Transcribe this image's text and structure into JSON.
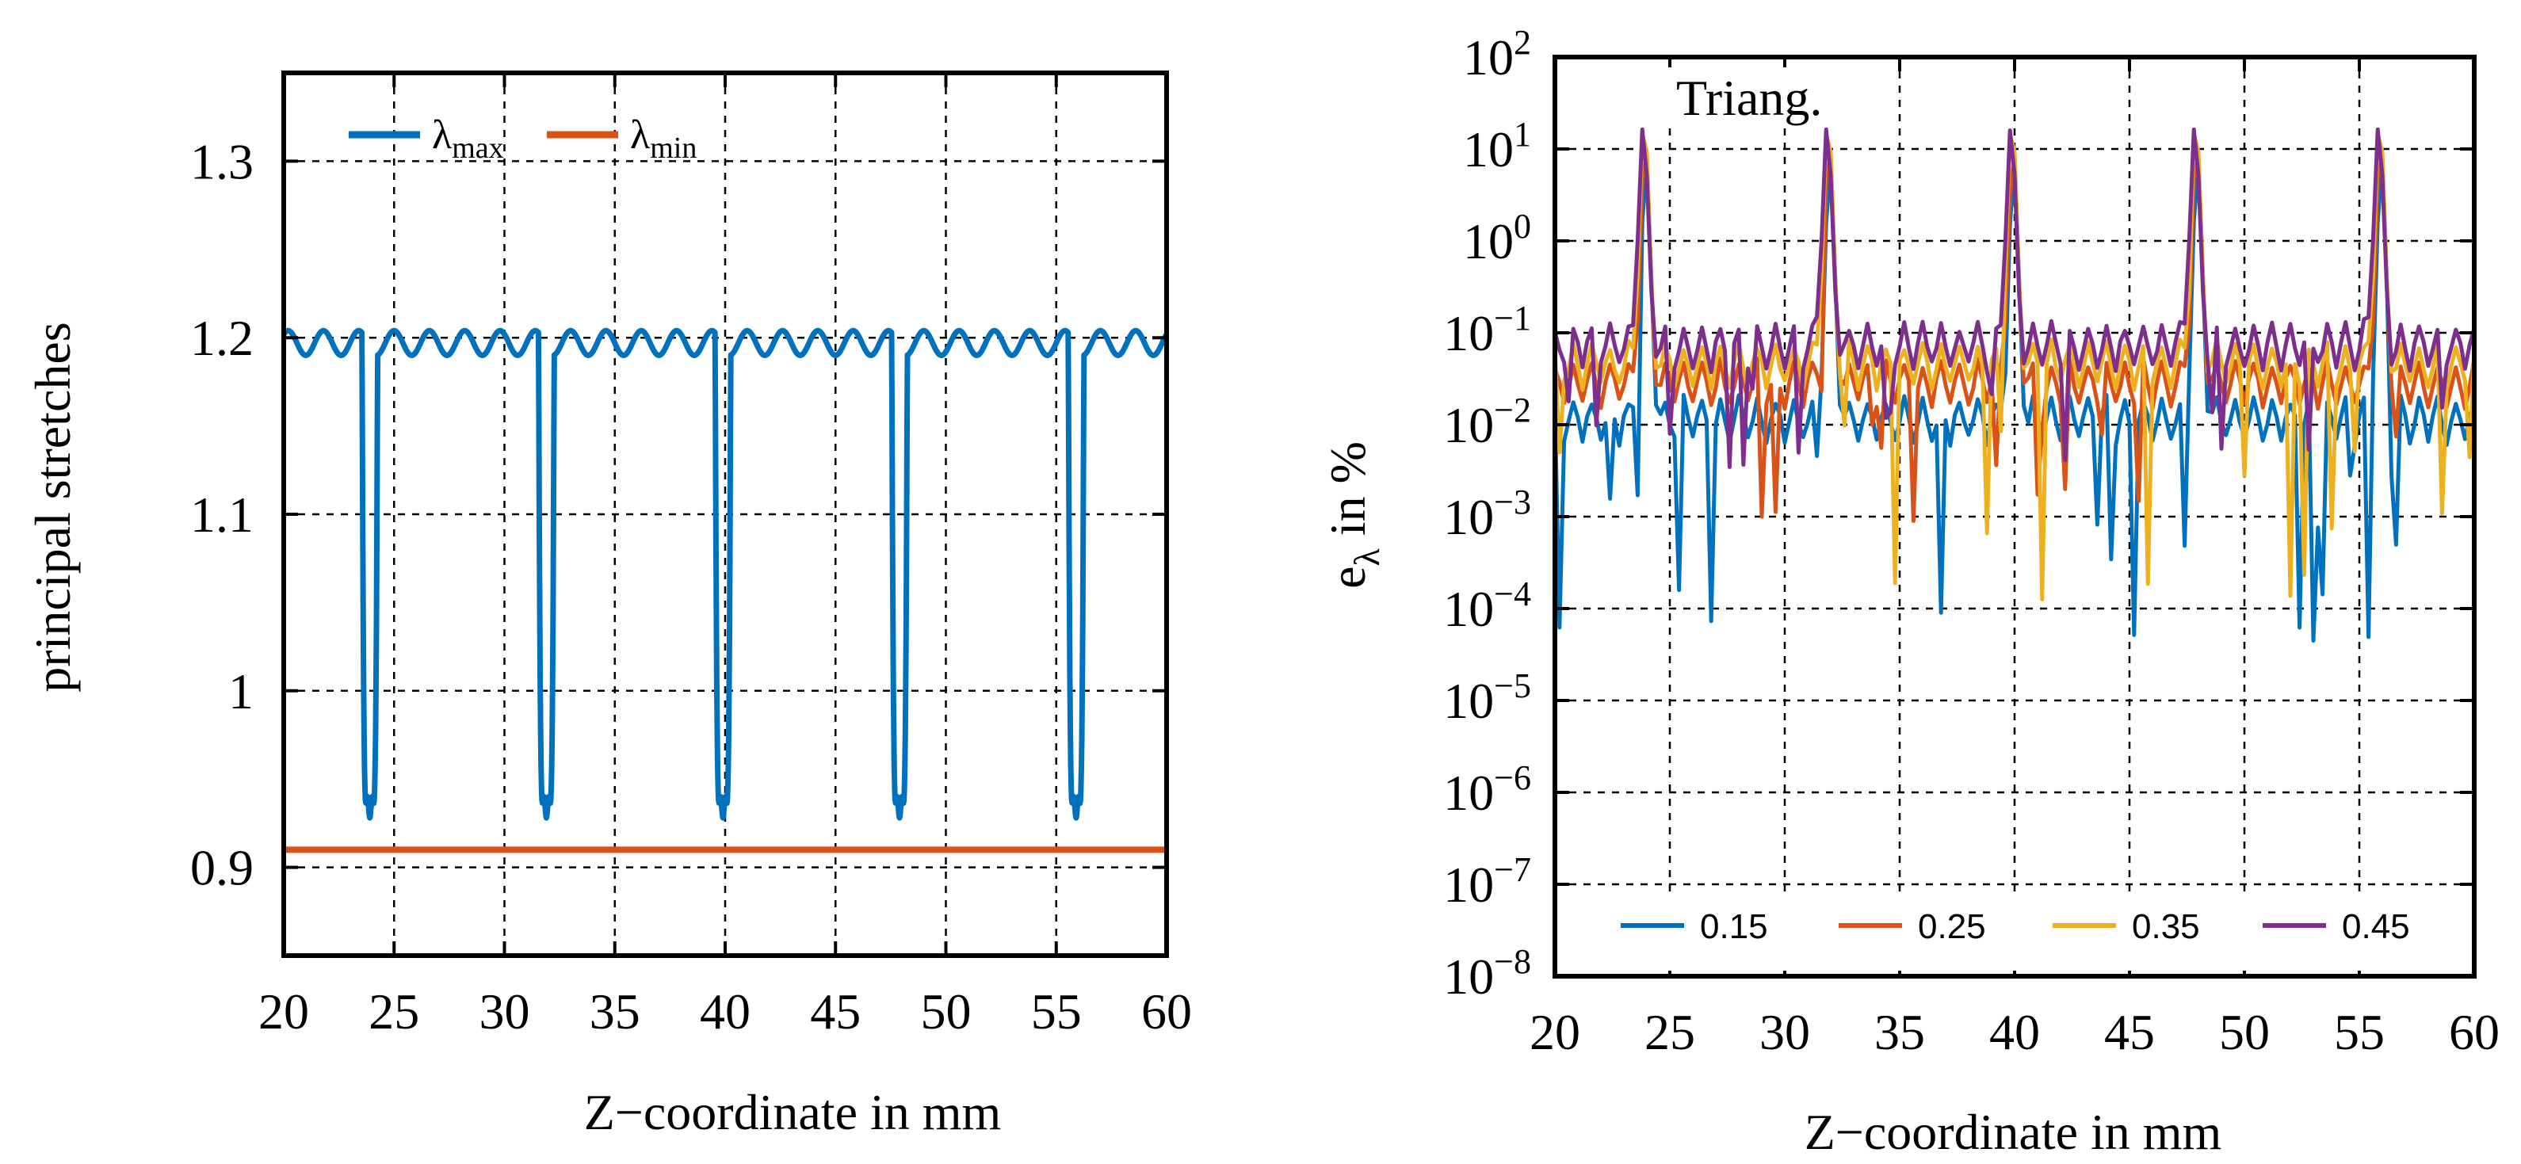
{
  "chart_data": [
    {
      "type": "line",
      "xlabel": "Z−coordinate in mm",
      "ylabel": "principal stretches",
      "xlim": [
        20,
        60
      ],
      "ylim": [
        0.85,
        1.35
      ],
      "yscale": "linear",
      "grid": true,
      "xticks": [
        20,
        25,
        30,
        35,
        40,
        45,
        50,
        55,
        60
      ],
      "xtick_labels": [
        "20",
        "25",
        "30",
        "35",
        "40",
        "45",
        "50",
        "55",
        "60"
      ],
      "yticks": [
        0.9,
        1.0,
        1.1,
        1.2,
        1.3
      ],
      "ytick_labels": [
        "0.9",
        "1",
        "1.1",
        "1.2",
        "1.3"
      ],
      "legend_position": "top-left",
      "series": [
        {
          "name": "λmax",
          "label_main": "λ",
          "label_sub": "max",
          "color": "#0072BD",
          "baseline": 1.197,
          "ripple_amplitude": 0.007,
          "ripple_period_mm": 1.6,
          "dip_centers_mm": [
            23.9,
            31.9,
            39.9,
            47.9,
            55.9
          ],
          "dip_min": 0.928
        },
        {
          "name": "λmin",
          "label_main": "λ",
          "label_sub": "min",
          "color": "#D95319",
          "constant_value": 0.91
        }
      ]
    },
    {
      "type": "line",
      "xlabel": "Z−coordinate in mm",
      "ylabel_main": "e",
      "ylabel_sub": "λ",
      "ylabel_rest": " in %",
      "xlim": [
        20,
        60
      ],
      "ylim": [
        1e-08,
        100
      ],
      "yscale": "log",
      "grid": true,
      "xticks": [
        20,
        25,
        30,
        35,
        40,
        45,
        50,
        55,
        60
      ],
      "xtick_labels": [
        "20",
        "25",
        "30",
        "35",
        "40",
        "45",
        "50",
        "55",
        "60"
      ],
      "ytick_exponents": [
        2,
        1,
        0,
        -1,
        -2,
        -3,
        -4,
        -5,
        -6,
        -7,
        -8
      ],
      "ytick_labels": [
        "10^2",
        "10^1",
        "10^0",
        "10^-1",
        "10^-2",
        "10^-3",
        "10^-4",
        "10^-5",
        "10^-6",
        "10^-7",
        "10^-8"
      ],
      "ytick_base": "10",
      "ytick_sups": [
        "2",
        "1",
        "0",
        "−1",
        "−2",
        "−3",
        "−4",
        "−5",
        "−6",
        "−7",
        "−8"
      ],
      "annotation": "Triang.",
      "legend_position": "bottom",
      "peak_centers_mm": [
        23.9,
        31.9,
        39.9,
        47.9,
        55.9
      ],
      "series": [
        {
          "name": "0.15",
          "color": "#0072BD",
          "base_log": -1.8,
          "peak": 8,
          "min_spike_log": -3.9
        },
        {
          "name": "0.25",
          "color": "#D95319",
          "base_log": -1.4,
          "peak": 12,
          "min_spike_log": -2.5
        },
        {
          "name": "0.35",
          "color": "#EDB120",
          "base_log": -1.2,
          "peak": 22,
          "min_spike_log": -3.5
        },
        {
          "name": "0.45",
          "color": "#7E2F8E",
          "base_log": -1.0,
          "peak": 18,
          "min_spike_log": -2.0
        }
      ]
    }
  ]
}
